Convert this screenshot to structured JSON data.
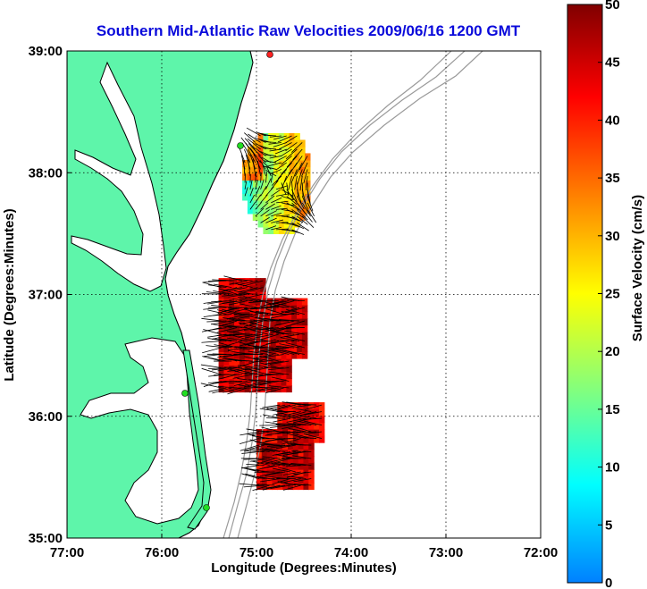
{
  "title": "Southern Mid-Atlantic Raw Velocities 2009/06/16 1200 GMT",
  "map": {
    "xlabel": "Longitude (Degrees:Minutes)",
    "ylabel": "Latitude (Degrees:Minutes)",
    "x_ticks": [
      {
        "value": -77,
        "label": "77:00"
      },
      {
        "value": -76,
        "label": "76:00"
      },
      {
        "value": -75,
        "label": "75:00"
      },
      {
        "value": -74,
        "label": "74:00"
      },
      {
        "value": -73,
        "label": "73:00"
      },
      {
        "value": -72,
        "label": "72:00"
      }
    ],
    "y_ticks": [
      {
        "value": 35,
        "label": "35:00"
      },
      {
        "value": 36,
        "label": "36:00"
      },
      {
        "value": 37,
        "label": "37:00"
      },
      {
        "value": 38,
        "label": "38:00"
      },
      {
        "value": 39,
        "label": "39:00"
      }
    ],
    "lon_range": [
      -77,
      -72
    ],
    "lat_range": [
      35,
      39
    ],
    "grid": true,
    "grid_style": "dotted",
    "land_color": "#5ef5aa",
    "coast_color": "#000000",
    "bathymetry_color": "#9a9a9a",
    "arrow_color": "#000000",
    "station_marker_color": "#22dd22"
  },
  "colorbar": {
    "label": "Surface Velocity (cm/s)",
    "min": 0,
    "max": 50,
    "ticks": [
      0,
      5,
      10,
      15,
      20,
      25,
      30,
      35,
      40,
      45,
      50
    ],
    "colormap": "jet",
    "colormap_stops": [
      "#0080ff",
      "#00ffff",
      "#80ff80",
      "#ffff00",
      "#ff8000",
      "#ff0000",
      "#800000"
    ]
  },
  "chart_data": {
    "type": "heatmap",
    "title": "Southern Mid-Atlantic Raw Velocities 2009/06/16 1200 GMT",
    "xlabel": "Longitude (Degrees:Minutes)",
    "ylabel": "Latitude (Degrees:Minutes)",
    "xlim": [
      -77,
      -72
    ],
    "ylim": [
      35,
      39
    ],
    "value_label": "Surface Velocity (cm/s)",
    "value_range": [
      0,
      50
    ],
    "regions": [
      {
        "lon": [
          -75.15,
          -74.45
        ],
        "lat": [
          37.5,
          38.3
        ],
        "typical_speed_cm_s": 25,
        "note": "northern field, mixed yellow/green/cyan with red near coast"
      },
      {
        "lon": [
          -75.4,
          -74.5
        ],
        "lat": [
          36.2,
          37.1
        ],
        "typical_speed_cm_s": 45,
        "note": "central field, dark red"
      },
      {
        "lon": [
          -75.0,
          -74.3
        ],
        "lat": [
          35.4,
          36.1
        ],
        "typical_speed_cm_s": 44,
        "note": "southern field, dark red"
      }
    ]
  }
}
